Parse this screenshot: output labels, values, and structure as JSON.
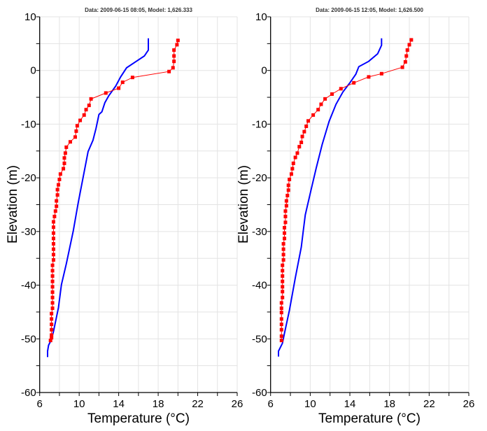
{
  "chart_data": [
    {
      "type": "line",
      "title": "Data: 2009-06-15 08:05, Model: 1,626.333",
      "xlabel": "Temperature (°C)",
      "ylabel": "Elevation (m)",
      "xlim": [
        6,
        26
      ],
      "ylim": [
        -60,
        10
      ],
      "xticks": [
        "6",
        "10",
        "14",
        "18",
        "22",
        "26"
      ],
      "yticks": [
        "10",
        "0",
        "-10",
        "-20",
        "-30",
        "-40",
        "-50",
        "-60"
      ],
      "grid": true,
      "colors": {
        "data": "#ff0000",
        "model": "#0000ff"
      },
      "series": [
        {
          "style": "red line with square markers",
          "x": [
            20.0,
            19.9,
            19.6,
            19.6,
            19.6,
            19.5,
            19.1,
            15.4,
            14.4,
            14.0,
            12.7,
            11.2,
            11.0,
            10.7,
            10.5,
            10.1,
            9.8,
            9.7,
            9.6,
            9.1,
            8.7,
            8.6,
            8.5,
            8.5,
            8.4,
            8.1,
            8.0,
            7.9,
            7.8,
            7.8,
            7.7,
            7.7,
            7.6,
            7.5,
            7.4,
            7.4,
            7.4,
            7.4,
            7.4,
            7.4,
            7.4,
            7.4,
            7.3,
            7.3,
            7.3,
            7.3,
            7.3,
            7.3,
            7.3,
            7.3,
            7.3,
            7.2,
            7.2,
            7.2,
            7.2,
            7.2,
            7.2,
            7.1
          ],
          "y": [
            5.6,
            4.8,
            3.8,
            2.7,
            1.7,
            0.5,
            -0.2,
            -1.3,
            -2.2,
            -3.3,
            -4.2,
            -5.3,
            -6.5,
            -7.3,
            -8.3,
            -9.3,
            -10.3,
            -11.3,
            -12.4,
            -13.3,
            -14.3,
            -15.4,
            -16.3,
            -17.3,
            -18.3,
            -19.3,
            -20.3,
            -21.3,
            -22.2,
            -23.2,
            -24.3,
            -25.3,
            -26.2,
            -27.2,
            -28.2,
            -29.2,
            -30.3,
            -31.3,
            -32.3,
            -33.3,
            -34.3,
            -35.3,
            -36.3,
            -37.3,
            -38.3,
            -39.3,
            -40.3,
            -41.3,
            -42.3,
            -43.3,
            -44.3,
            -45.3,
            -46.3,
            -47.3,
            -48.3,
            -49.3,
            -49.8,
            -50.3
          ]
        },
        {
          "style": "blue line",
          "x": [
            17.0,
            17.0,
            16.6,
            15.7,
            14.8,
            14.2,
            13.7,
            13.0,
            12.6,
            12.3,
            12.0,
            11.7,
            11.4,
            10.9,
            10.4,
            9.9,
            9.4,
            8.7,
            8.2,
            7.9,
            7.4,
            7.2,
            6.9,
            6.8,
            6.8
          ],
          "y": [
            6.0,
            3.8,
            2.7,
            1.6,
            0.5,
            -1.2,
            -2.9,
            -4.7,
            -6.0,
            -7.7,
            -8.2,
            -10.8,
            -13.0,
            -15.1,
            -19.9,
            -24.7,
            -29.9,
            -36.0,
            -39.9,
            -44.2,
            -48.6,
            -50.1,
            -51.2,
            -52.3,
            -53.4
          ]
        }
      ]
    },
    {
      "type": "line",
      "title": "Data: 2009-06-15 12:05, Model: 1,626.500",
      "xlabel": "Temperature (°C)",
      "ylabel": "Elevation (m)",
      "xlim": [
        6,
        26
      ],
      "ylim": [
        -60,
        10
      ],
      "xticks": [
        "6",
        "10",
        "14",
        "18",
        "22",
        "26"
      ],
      "yticks": [
        "10",
        "0",
        "-10",
        "-20",
        "-30",
        "-40",
        "-50",
        "-60"
      ],
      "grid": true,
      "colors": {
        "data": "#ff0000",
        "model": "#0000ff"
      },
      "series": [
        {
          "style": "red line with square markers",
          "x": [
            20.2,
            20.0,
            19.8,
            19.7,
            19.6,
            19.3,
            17.2,
            15.9,
            14.4,
            13.1,
            12.2,
            11.5,
            11.1,
            10.8,
            10.3,
            9.8,
            9.6,
            9.4,
            9.2,
            9.1,
            8.9,
            8.7,
            8.5,
            8.3,
            8.2,
            8.1,
            7.9,
            7.8,
            7.8,
            7.7,
            7.6,
            7.6,
            7.5,
            7.5,
            7.5,
            7.4,
            7.4,
            7.4,
            7.3,
            7.3,
            7.3,
            7.3,
            7.2,
            7.2,
            7.2,
            7.2,
            7.2,
            7.2,
            7.2,
            7.1,
            7.1,
            7.1,
            7.1,
            7.1,
            7.1,
            7.1,
            7.1
          ],
          "y": [
            5.7,
            4.8,
            3.8,
            2.7,
            1.6,
            0.6,
            -0.6,
            -1.2,
            -2.3,
            -3.4,
            -4.4,
            -5.3,
            -6.3,
            -7.3,
            -8.3,
            -9.4,
            -10.4,
            -11.4,
            -12.3,
            -13.4,
            -14.2,
            -15.4,
            -16.2,
            -17.3,
            -18.3,
            -19.3,
            -20.3,
            -21.4,
            -22.3,
            -23.3,
            -24.3,
            -25.2,
            -26.2,
            -27.2,
            -28.3,
            -29.3,
            -30.3,
            -31.3,
            -32.3,
            -33.3,
            -34.3,
            -35.3,
            -36.3,
            -37.3,
            -38.3,
            -39.3,
            -40.3,
            -41.2,
            -42.3,
            -43.3,
            -44.3,
            -45.1,
            -46.3,
            -47.3,
            -48.3,
            -49.5,
            -50.3
          ]
        },
        {
          "style": "blue line",
          "x": [
            17.2,
            17.2,
            16.8,
            15.9,
            14.9,
            14.6,
            14.0,
            13.3,
            12.6,
            11.9,
            11.2,
            10.6,
            10.1,
            9.5,
            9.3,
            9.1,
            8.5,
            7.9,
            7.4,
            7.2,
            6.8,
            6.8
          ],
          "y": [
            6.0,
            4.7,
            3.1,
            1.7,
            0.7,
            -0.7,
            -2.3,
            -4.0,
            -6.3,
            -9.5,
            -13.8,
            -18.2,
            -22.1,
            -26.9,
            -29.9,
            -32.9,
            -38.6,
            -44.7,
            -49.0,
            -50.8,
            -52.3,
            -53.3
          ]
        }
      ]
    }
  ]
}
